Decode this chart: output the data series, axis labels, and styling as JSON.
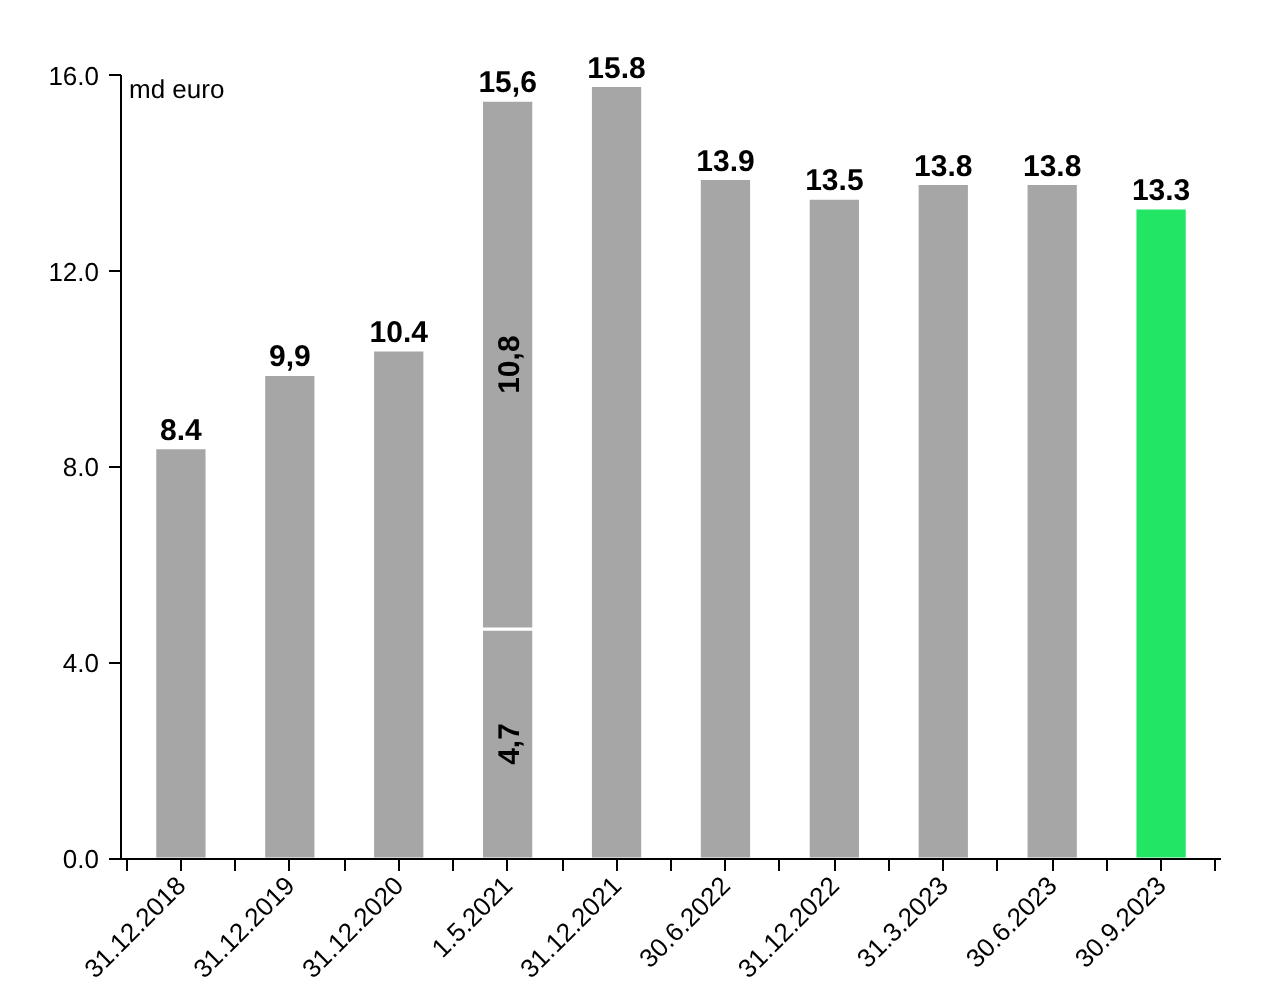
{
  "chart_data": {
    "type": "bar",
    "ylabel": "md euro",
    "stacked": true,
    "categories": [
      "31.12.2018",
      "31.12.2019",
      "31.12.2020",
      "1.5.2021",
      "31.12.2021",
      "30.6.2022",
      "31.12.2022",
      "31.3.2023",
      "30.6.2023",
      "30.9.2023"
    ],
    "series": [
      {
        "colors": [
          "#a6a6a6",
          "#a6a6a6",
          "#a6a6a6",
          "#a6a6a6",
          "#a6a6a6",
          "#a6a6a6",
          "#a6a6a6",
          "#a6a6a6",
          "#a6a6a6",
          "#22e564"
        ],
        "values": [
          8.4,
          9.9,
          10.4,
          4.7,
          15.8,
          13.9,
          13.5,
          13.8,
          13.8,
          13.3
        ],
        "value_labels": [
          null,
          null,
          null,
          "4,7",
          null,
          null,
          null,
          null,
          null,
          null
        ]
      },
      {
        "color": "#a6a6a6",
        "values": [
          null,
          null,
          null,
          10.8,
          null,
          null,
          null,
          null,
          null,
          null
        ],
        "value_labels": [
          null,
          null,
          null,
          "10,8",
          null,
          null,
          null,
          null,
          null,
          null
        ]
      }
    ],
    "totals": [
      "8.4",
      "9,9",
      "10.4",
      "15,6",
      "15.8",
      "13.9",
      "13.5",
      "13.8",
      "13.8",
      "13.3"
    ],
    "ylim": [
      0,
      16
    ],
    "yticks": [
      {
        "value": 0,
        "label": "0.0"
      },
      {
        "value": 4,
        "label": "4.0"
      },
      {
        "value": 8,
        "label": "8.0"
      },
      {
        "value": 12,
        "label": "12.0"
      },
      {
        "value": 16,
        "label": "16.0"
      }
    ],
    "grid": false
  }
}
